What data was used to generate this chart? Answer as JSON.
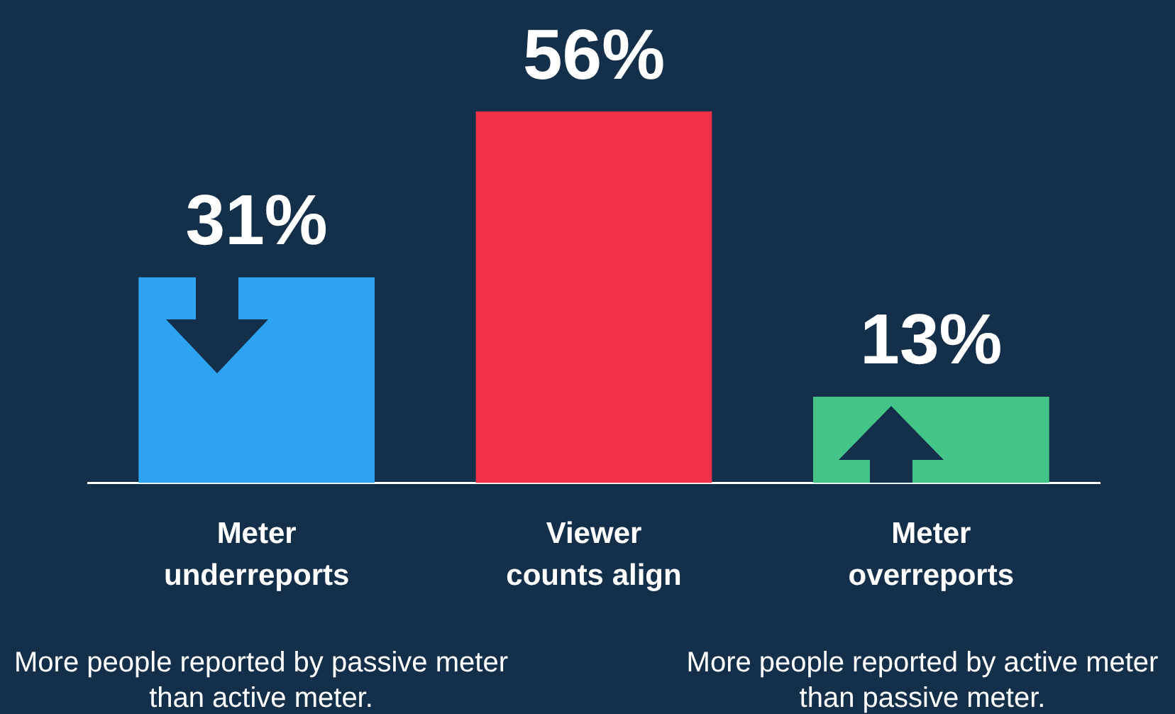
{
  "chart_data": {
    "type": "bar",
    "categories": [
      "Meter underreports",
      "Viewer counts align",
      "Meter overreports"
    ],
    "values": [
      31,
      56,
      13
    ],
    "colors": [
      "#2ea3f2",
      "#f23047",
      "#44c486"
    ],
    "data_labels": true,
    "value_labels": [
      "31%",
      "56%",
      "13%"
    ],
    "annotations": [
      "More people reported by passive meter than active meter.",
      "More people reported by active meter than passive meter."
    ]
  }
}
